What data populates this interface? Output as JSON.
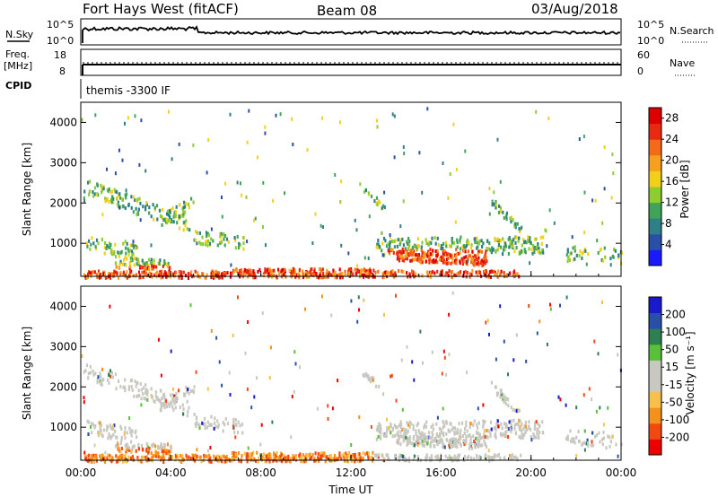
{
  "header": {
    "title": "Fort Hays West (fitACF)",
    "beam": "Beam 08",
    "date": "03/Aug/2018"
  },
  "top_panels": {
    "nsky_label": "N.Sky",
    "nsky_top": "10^5",
    "nsky_bottom": "10^0",
    "nsearch_label": "N.Search",
    "nsearch_top": "10^5",
    "nsearch_bottom": "10^0",
    "freq_label": "Freq.",
    "freq_unit": "[MHz]",
    "freq_top": "18",
    "freq_bottom": "8",
    "nave_label": "Nave",
    "nave_top": "60",
    "nave_bottom": "0",
    "cpid_label": "CPID",
    "cpid_text": "themis -3300 IF"
  },
  "colors": {
    "power_scale": [
      "#1a1aff",
      "#2a4fa8",
      "#2f7f86",
      "#3fa45a",
      "#8fcc30",
      "#f2d01a",
      "#f7a020",
      "#f26a1a",
      "#e82a12",
      "#dd0000"
    ],
    "velocity_scale": [
      "#ee0000",
      "#f04a10",
      "#f4901c",
      "#f6c04a",
      "#c8c8c0",
      "#c8c8c0",
      "#5ac03a",
      "#2f8050",
      "#2a4fa8",
      "#1a1acc"
    ],
    "ground_scatter": "#c8c8c0"
  },
  "chart_data": [
    {
      "type": "heatmap",
      "name": "power",
      "ylabel": "Slant Range [km]",
      "yticks": [
        "1000",
        "2000",
        "3000",
        "4000"
      ],
      "ylim": [
        180,
        4500
      ],
      "xticks": [
        "00:00",
        "04:00",
        "08:00",
        "12:00",
        "16:00",
        "20:00",
        "00:00"
      ],
      "xlim_hours": [
        0,
        24
      ],
      "colorbar": {
        "label": "Power [dB]",
        "ticks": [
          "4",
          "8",
          "12",
          "16",
          "20",
          "24",
          "28"
        ],
        "range": [
          0,
          30
        ]
      }
    },
    {
      "type": "heatmap",
      "name": "velocity",
      "ylabel": "Slant Range [km]",
      "yticks": [
        "1000",
        "2000",
        "3000",
        "4000"
      ],
      "ylim": [
        180,
        4500
      ],
      "xticks": [
        "00:00",
        "04:00",
        "08:00",
        "12:00",
        "16:00",
        "20:00",
        "00:00"
      ],
      "xlabel": "Time UT",
      "colorbar": {
        "label": "Velocity [m s⁻¹]",
        "ticks": [
          "200",
          "100",
          "50",
          "15",
          "-15",
          "-50",
          "-100",
          "-200"
        ]
      }
    }
  ]
}
